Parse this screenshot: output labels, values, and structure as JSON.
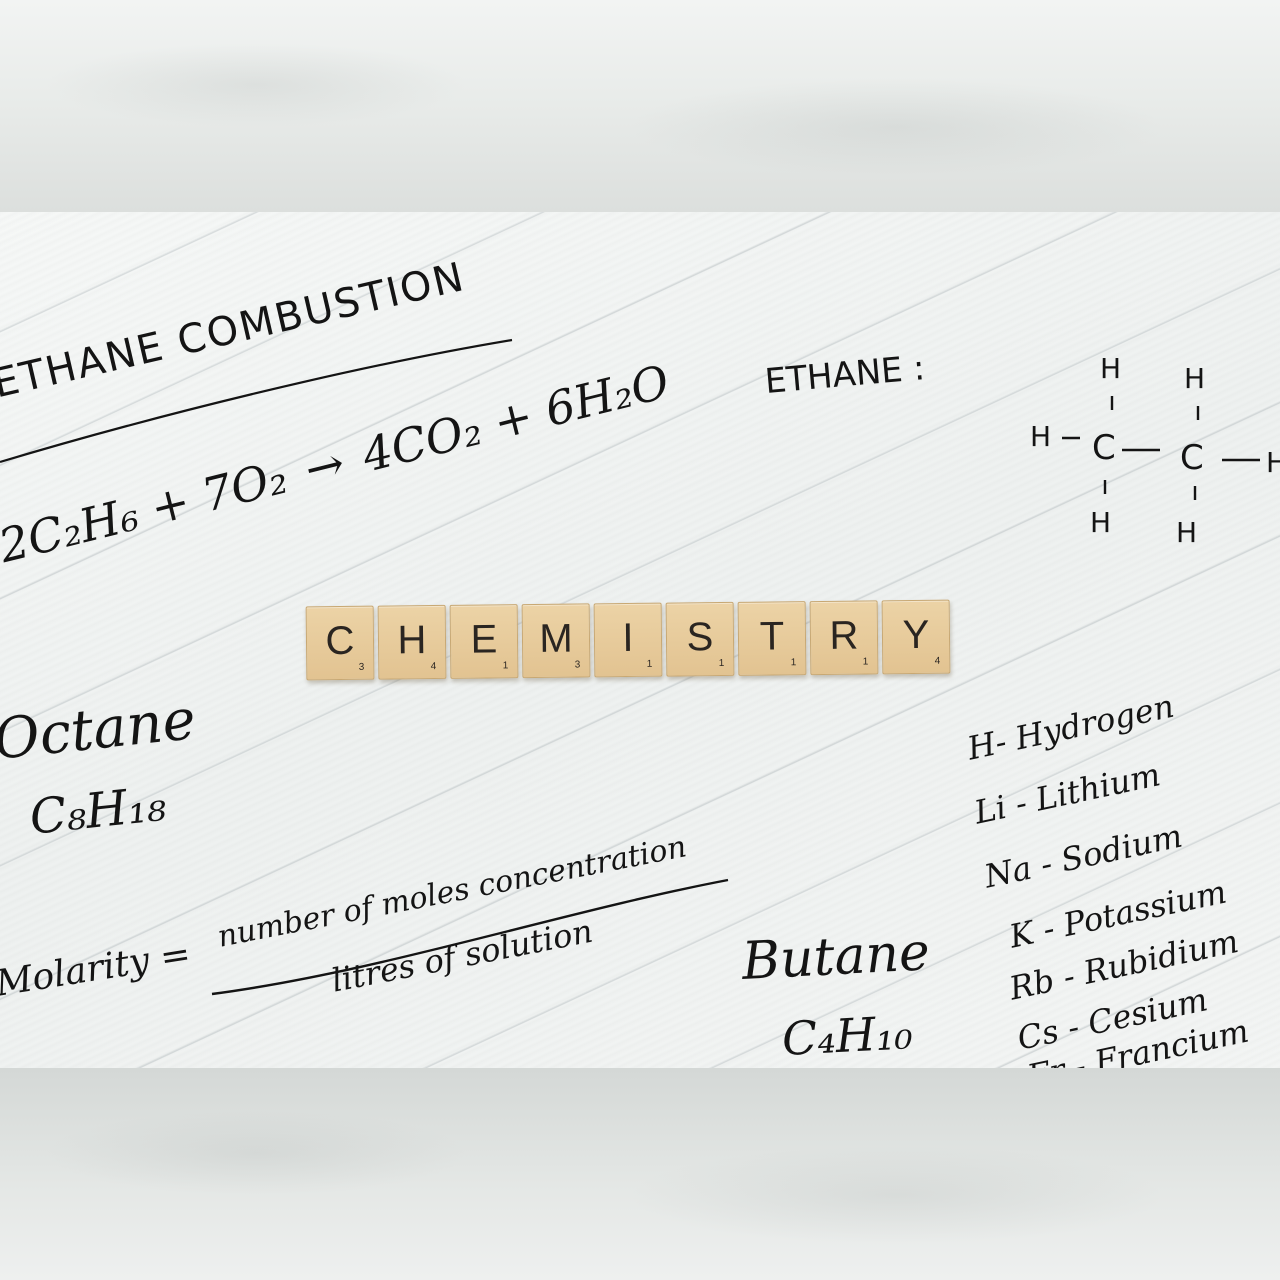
{
  "ethane_combustion": {
    "title": "ETHANE COMBUSTION",
    "equation_reactants": "2C₂H₆ + 7O₂",
    "equation_arrow": "→",
    "equation_products": "4CO₂ + 6H₂O"
  },
  "ethane_structure": {
    "label": "ETHANE :",
    "atoms": [
      "H",
      "H",
      "H",
      "C",
      "C",
      "H",
      "H",
      "H"
    ]
  },
  "tiles": [
    {
      "letter": "C",
      "score": "3"
    },
    {
      "letter": "H",
      "score": "4"
    },
    {
      "letter": "E",
      "score": "1"
    },
    {
      "letter": "M",
      "score": "3"
    },
    {
      "letter": "I",
      "score": "1"
    },
    {
      "letter": "S",
      "score": "1"
    },
    {
      "letter": "T",
      "score": "1"
    },
    {
      "letter": "R",
      "score": "1"
    },
    {
      "letter": "Y",
      "score": "4"
    }
  ],
  "octane": {
    "name": "Octane",
    "formula": "C₈H₁₈"
  },
  "molarity": {
    "lhs": "Molarity =",
    "numerator": "number of moles concentration",
    "denominator": "litres of solution"
  },
  "butane": {
    "name": "Butane",
    "formula": "C₄H₁₀"
  },
  "elements": [
    "H- Hydrogen",
    "Li - Lithium",
    "Na - Sodium",
    "K - Potassium",
    "Rb - Rubidium",
    "Cs - Cesium",
    "Fr - Francium"
  ]
}
